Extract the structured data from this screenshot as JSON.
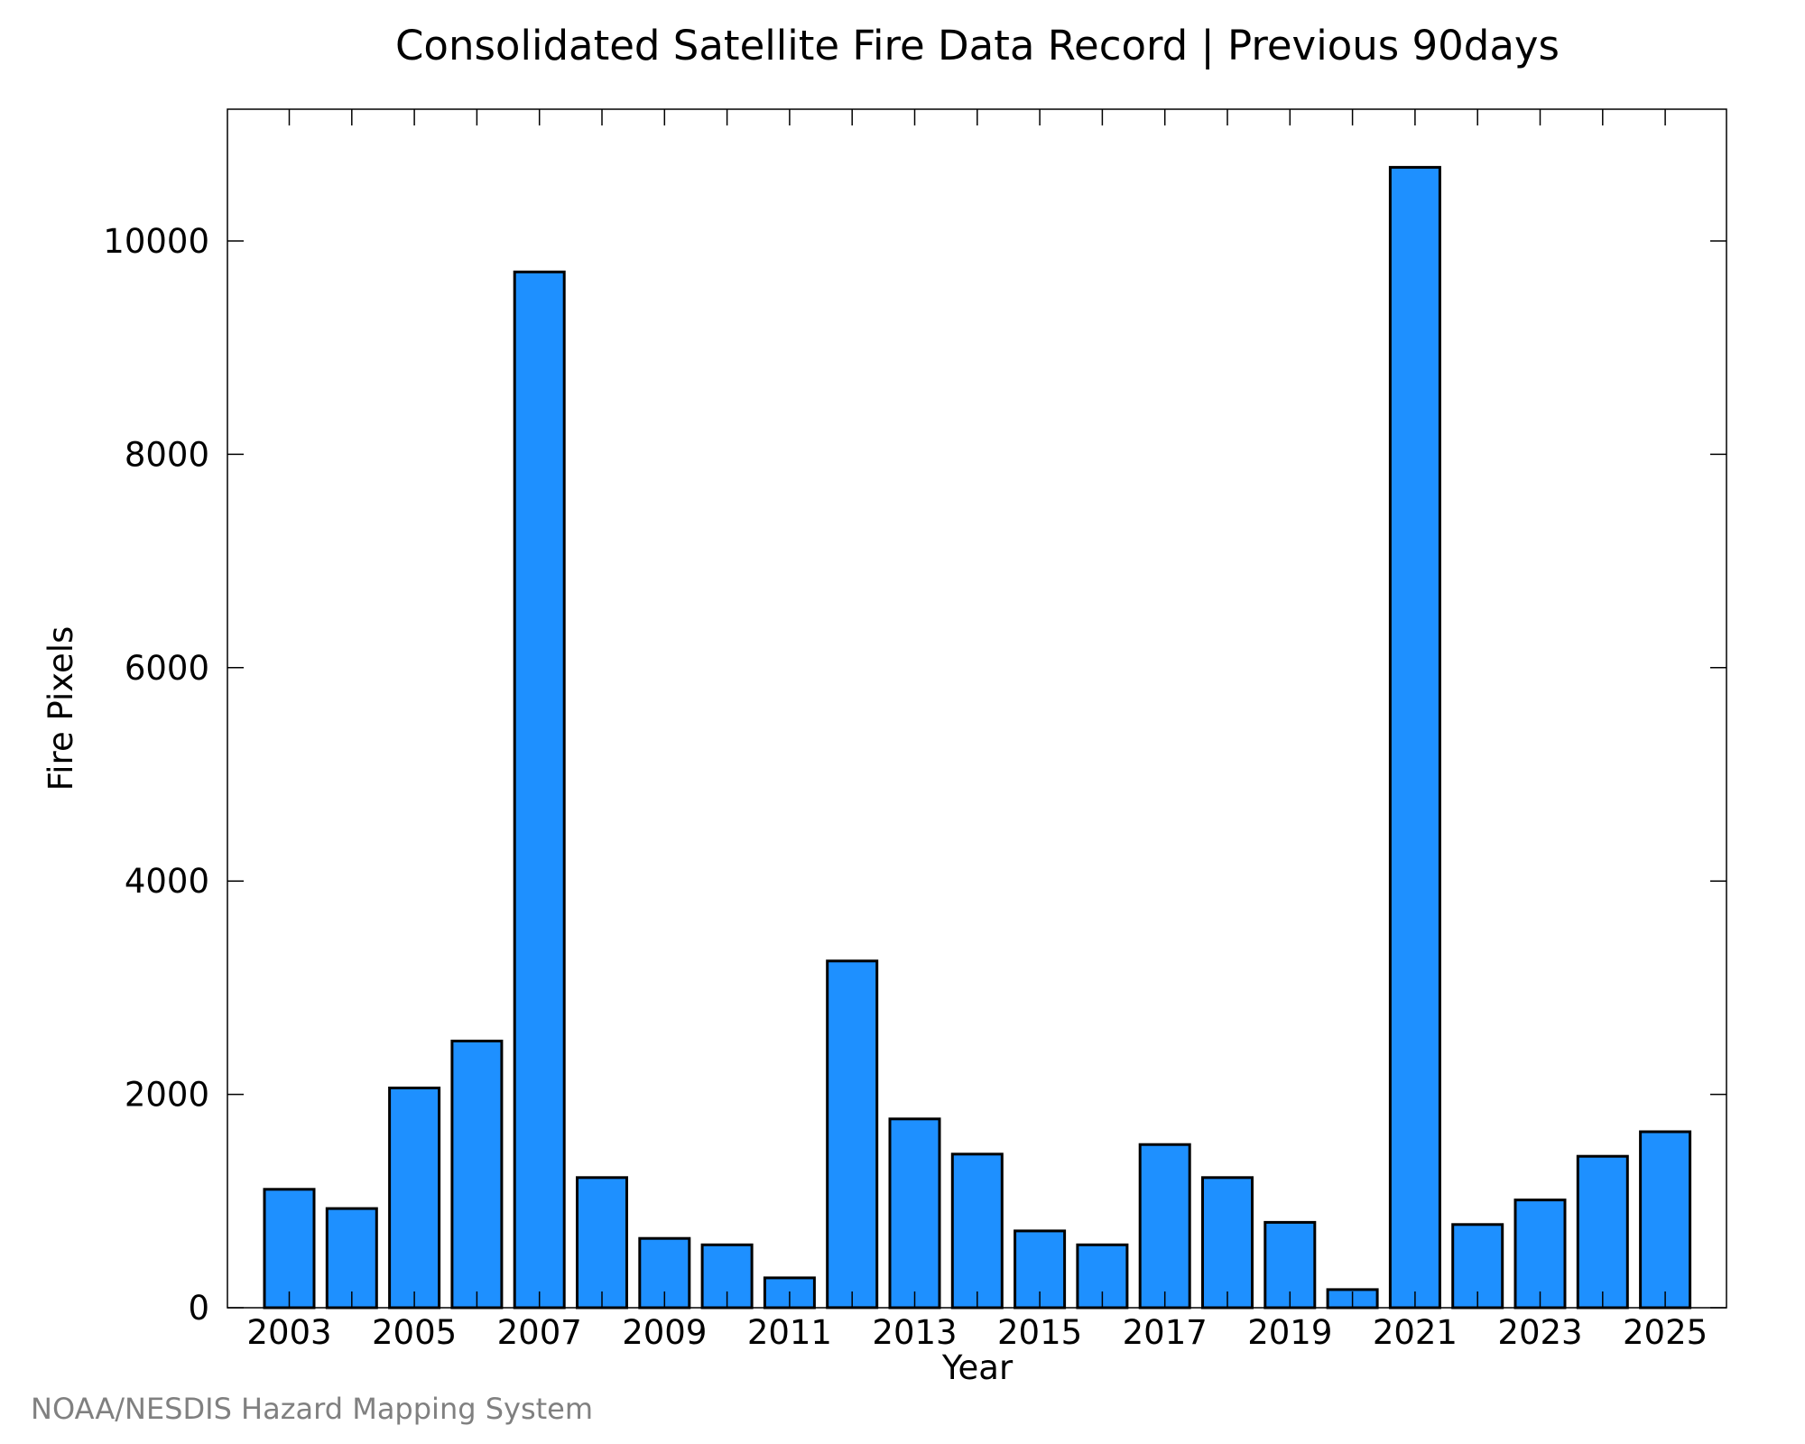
{
  "chart_data": {
    "type": "bar",
    "title": "Consolidated Satellite Fire Data Record | Previous 90days",
    "xlabel": "Year",
    "ylabel": "Fire Pixels",
    "categories": [
      "2003",
      "2004",
      "2005",
      "2006",
      "2007",
      "2008",
      "2009",
      "2010",
      "2011",
      "2012",
      "2013",
      "2014",
      "2015",
      "2016",
      "2017",
      "2018",
      "2019",
      "2020",
      "2021",
      "2022",
      "2023",
      "2024",
      "2025"
    ],
    "values": [
      1110,
      930,
      2060,
      2500,
      9710,
      1220,
      650,
      590,
      280,
      3250,
      1770,
      1440,
      720,
      590,
      1530,
      1220,
      800,
      170,
      10690,
      780,
      1010,
      1420,
      1650
    ],
    "xticks": [
      "2003",
      "2005",
      "2007",
      "2009",
      "2011",
      "2013",
      "2015",
      "2017",
      "2019",
      "2021",
      "2023",
      "2025"
    ],
    "yticks": [
      0,
      2000,
      4000,
      6000,
      8000,
      10000
    ],
    "ylim": [
      0,
      11000
    ],
    "grid": false,
    "bar_color": "#1e90ff",
    "bar_edge_color": "#000000"
  },
  "credit": "NOAA/NESDIS Hazard Mapping System"
}
